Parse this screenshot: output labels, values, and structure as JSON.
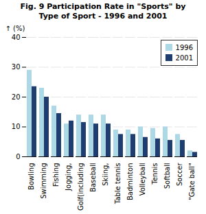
{
  "chart_data": {
    "type": "bar",
    "title": "Fig. 9 Participation Rate in \"Sports\" by\nType of Sport - 1996 and 2001",
    "y_label": "(%)",
    "categories": [
      "Bowling",
      "Swimming",
      "Fishing",
      "Jogging,",
      "Golf(including",
      "Baseball",
      "Skiing,",
      "Table tennis",
      "Badminton",
      "Volleyball",
      "Tennis",
      "Softball",
      "Soccer",
      "\"Gate ball\""
    ],
    "series": [
      {
        "name": "1996",
        "color": "#add8e6",
        "values": [
          29,
          23,
          17,
          11,
          14,
          14,
          14,
          9,
          9,
          10,
          9.5,
          10,
          7.5,
          2
        ]
      },
      {
        "name": "2001",
        "color": "#1f3d6e",
        "values": [
          23.5,
          20,
          14.5,
          12,
          11.5,
          11,
          11,
          7.5,
          7.5,
          6.5,
          6,
          5.5,
          5.5,
          1.5
        ]
      }
    ],
    "ylim": [
      0,
      40
    ],
    "yticks": [
      0,
      10,
      20,
      30,
      40
    ],
    "grid": true,
    "legend": "upper right"
  }
}
